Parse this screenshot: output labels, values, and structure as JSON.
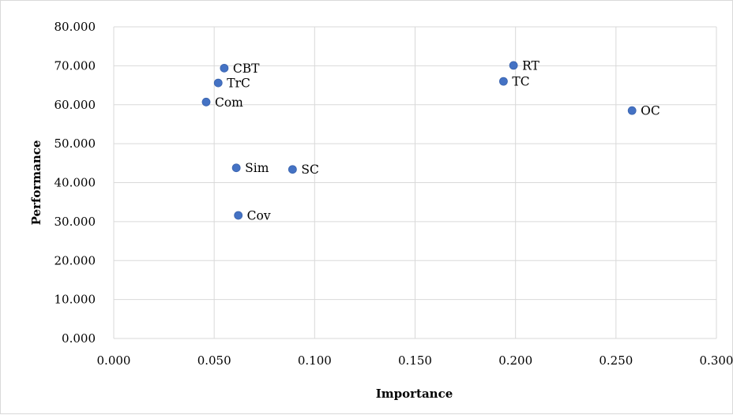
{
  "chart_data": {
    "type": "scatter",
    "title": "",
    "xlabel": "Importance",
    "ylabel": "Performance",
    "xlim": [
      0,
      0.3
    ],
    "ylim": [
      0,
      80
    ],
    "x_ticks": [
      "0.000",
      "0.050",
      "0.100",
      "0.150",
      "0.200",
      "0.250",
      "0.300"
    ],
    "y_ticks": [
      "0.000",
      "10.000",
      "20.000",
      "30.000",
      "40.000",
      "50.000",
      "60.000",
      "70.000",
      "80.000"
    ],
    "grid": true,
    "marker_color": "#4472c4",
    "points": [
      {
        "label": "CBT",
        "x": 0.055,
        "y": 69.4
      },
      {
        "label": "TrC",
        "x": 0.052,
        "y": 65.6
      },
      {
        "label": "Com",
        "x": 0.046,
        "y": 60.7
      },
      {
        "label": "RT",
        "x": 0.199,
        "y": 70.1
      },
      {
        "label": "TC",
        "x": 0.194,
        "y": 66.0
      },
      {
        "label": "OC",
        "x": 0.258,
        "y": 58.5
      },
      {
        "label": "Sim",
        "x": 0.061,
        "y": 43.8
      },
      {
        "label": "SC",
        "x": 0.089,
        "y": 43.4
      },
      {
        "label": "Cov",
        "x": 0.062,
        "y": 31.6
      }
    ]
  }
}
